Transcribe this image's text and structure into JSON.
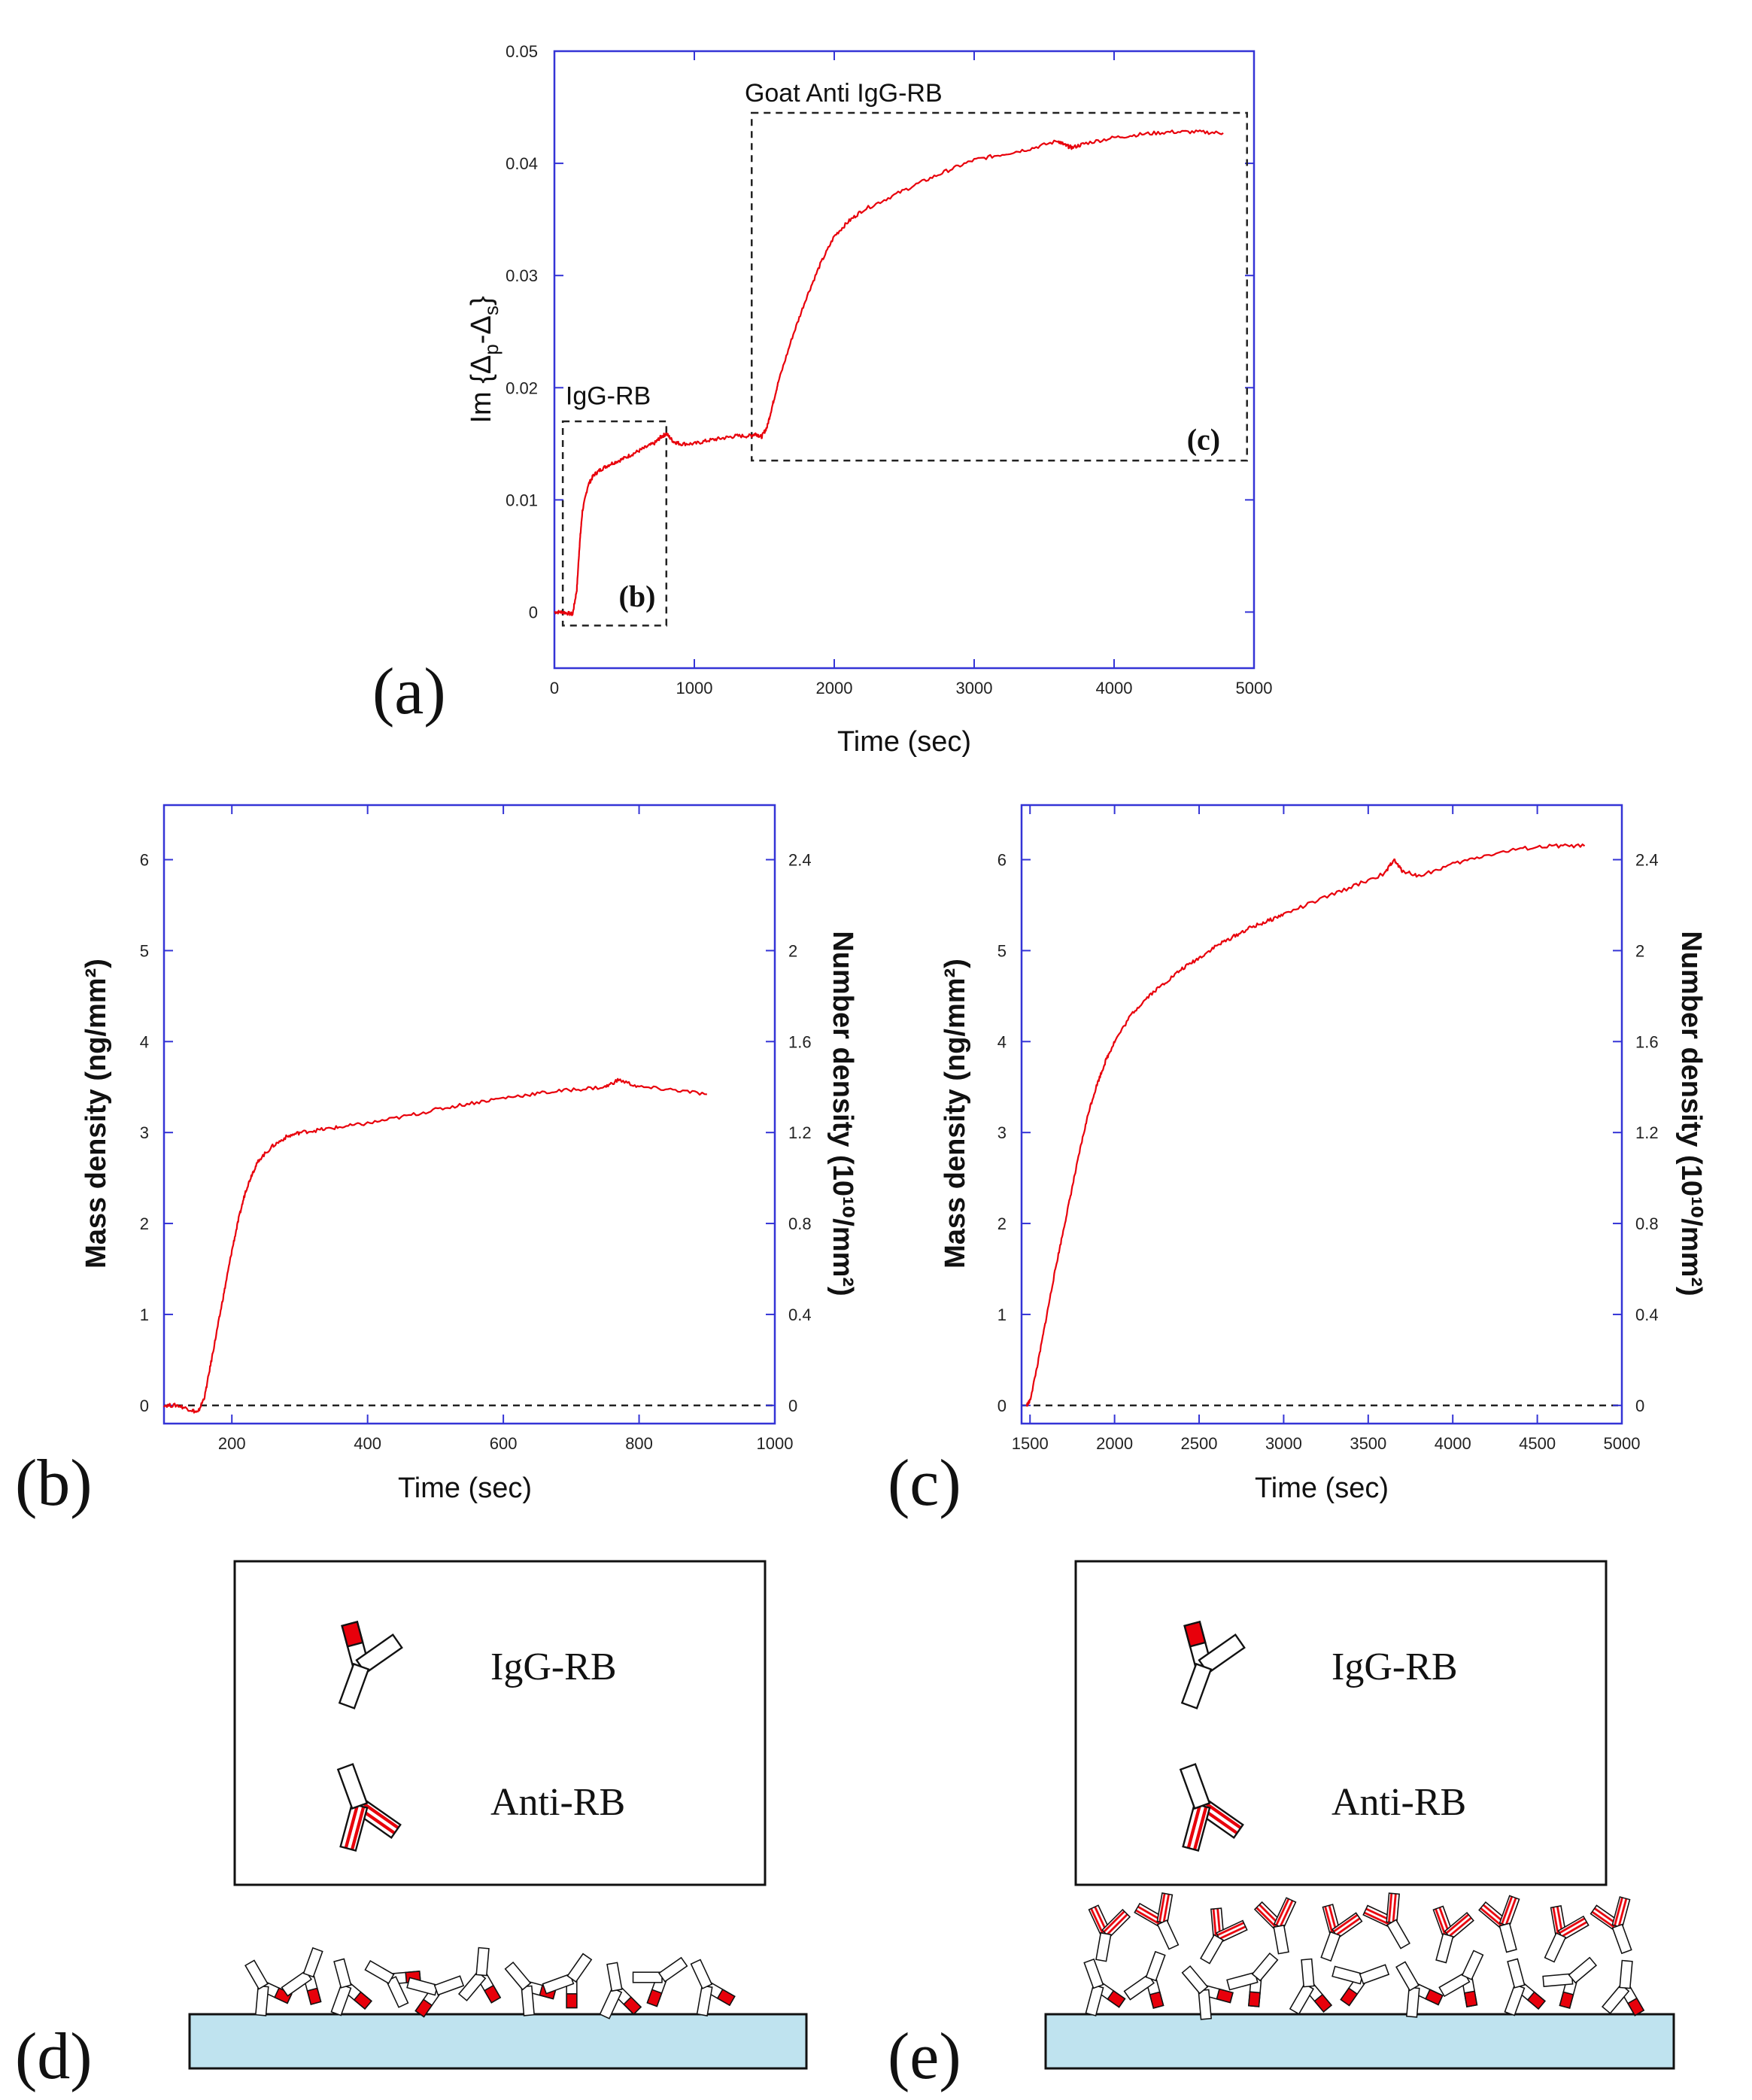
{
  "colors": {
    "axis": "#3434d6",
    "curve": "#e8000b",
    "substrate": "#bfe3ef",
    "fab": "#e8000b"
  },
  "panel_labels": {
    "a": "(a)",
    "b": "(b)",
    "c": "(c)",
    "d": "(d)",
    "e": "(e)"
  },
  "chart_data": [
    {
      "id": "a",
      "type": "line",
      "xlabel": "Time (sec)",
      "ylabel": "Im {Δp-Δs}",
      "ylabel_parts": {
        "prefix": "Im {Δ",
        "sub1": "p",
        "mid": "-Δ",
        "sub2": "s",
        "suffix": "}"
      },
      "xlim": [
        0,
        5000
      ],
      "ylim": [
        -0.005,
        0.05
      ],
      "xticks": [
        0,
        1000,
        2000,
        3000,
        4000,
        5000
      ],
      "xtick_labels": [
        "0",
        "1000",
        "2000",
        "3000",
        "4000",
        "5000"
      ],
      "yticks": [
        0,
        0.01,
        0.02,
        0.03,
        0.04,
        0.05
      ],
      "ytick_labels": [
        "0",
        "0.01",
        "0.02",
        "0.03",
        "0.04",
        "0.05"
      ],
      "annotations": [
        {
          "text": "IgG-RB",
          "x": 80,
          "y": 0.0185
        },
        {
          "text": "Goat Anti IgG-RB",
          "x": 1360,
          "y": 0.0455
        },
        {
          "text": "(b)",
          "x": 460,
          "y": 0.0005,
          "serif": true
        },
        {
          "text": "(c)",
          "x": 4520,
          "y": 0.0145,
          "serif": true
        }
      ],
      "boxes": [
        {
          "x0": 60,
          "x1": 800,
          "y0": -0.0012,
          "y1": 0.017
        },
        {
          "x0": 1410,
          "x1": 4950,
          "y0": 0.0135,
          "y1": 0.0445
        }
      ],
      "series": [
        {
          "x": [
            0,
            60,
            130,
            160,
            180,
            200,
            240,
            280,
            330,
            400,
            480,
            560,
            640,
            720,
            760,
            800,
            850,
            900,
            1000,
            1100,
            1200,
            1300,
            1400,
            1440,
            1480,
            1520,
            1560,
            1600,
            1700,
            1800,
            1900,
            2000,
            2100,
            2200,
            2400,
            2600,
            2800,
            3000,
            3200,
            3400,
            3600,
            3650,
            3700,
            3800,
            4000,
            4200,
            4400,
            4600,
            4780
          ],
          "y": [
            0,
            0,
            -0.0002,
            0.002,
            0.006,
            0.009,
            0.0113,
            0.0122,
            0.0127,
            0.0132,
            0.0136,
            0.0141,
            0.0146,
            0.0151,
            0.0156,
            0.0159,
            0.0152,
            0.015,
            0.015,
            0.0153,
            0.0155,
            0.0157,
            0.0157,
            0.0159,
            0.0156,
            0.0165,
            0.0185,
            0.0205,
            0.0245,
            0.028,
            0.031,
            0.0335,
            0.0348,
            0.0358,
            0.037,
            0.0382,
            0.0393,
            0.0403,
            0.0408,
            0.0413,
            0.042,
            0.0416,
            0.0414,
            0.0418,
            0.0423,
            0.0426,
            0.0428,
            0.0428,
            0.0427
          ]
        }
      ]
    },
    {
      "id": "b",
      "type": "line",
      "xlabel": "Time (sec)",
      "ylabel": "Mass density (ng/mm²)",
      "y2label": "Number density (10¹⁰/mm²)",
      "xlim": [
        100,
        1000
      ],
      "ylim": [
        -0.2,
        6.6
      ],
      "xticks": [
        200,
        400,
        600,
        800,
        1000
      ],
      "xtick_labels": [
        "200",
        "400",
        "600",
        "800",
        "1000"
      ],
      "yticks": [
        0,
        1,
        2,
        3,
        4,
        5,
        6
      ],
      "ytick_labels": [
        "0",
        "1",
        "2",
        "3",
        "4",
        "5",
        "6"
      ],
      "y2ticks": [
        0,
        0.4,
        0.8,
        1.2,
        1.6,
        2,
        2.4
      ],
      "y2tick_labels": [
        "0",
        "0.4",
        "0.8",
        "1.2",
        "1.6",
        "2",
        "2.4"
      ],
      "y2_per_y": 0.4,
      "zero_line": true,
      "series": [
        {
          "x": [
            100,
            120,
            140,
            150,
            160,
            170,
            180,
            190,
            200,
            210,
            220,
            230,
            240,
            260,
            280,
            300,
            330,
            360,
            400,
            450,
            500,
            550,
            600,
            650,
            700,
            750,
            770,
            800,
            850,
            900
          ],
          "y": [
            0,
            0,
            -0.05,
            -0.08,
            0.1,
            0.5,
            0.9,
            1.3,
            1.7,
            2.05,
            2.35,
            2.55,
            2.7,
            2.85,
            2.95,
            3.0,
            3.03,
            3.06,
            3.1,
            3.17,
            3.25,
            3.32,
            3.38,
            3.43,
            3.47,
            3.5,
            3.58,
            3.5,
            3.47,
            3.42
          ]
        }
      ]
    },
    {
      "id": "c",
      "type": "line",
      "xlabel": "Time (sec)",
      "ylabel": "Mass density (ng/mm²)",
      "y2label": "Number density (10¹⁰/mm²)",
      "xlim": [
        1450,
        5000
      ],
      "ylim": [
        -0.2,
        6.6
      ],
      "xticks": [
        1500,
        2000,
        2500,
        3000,
        3500,
        4000,
        4500,
        5000
      ],
      "xtick_labels": [
        "1500",
        "2000",
        "2500",
        "3000",
        "3500",
        "4000",
        "4500",
        "5000"
      ],
      "yticks": [
        0,
        1,
        2,
        3,
        4,
        5,
        6
      ],
      "ytick_labels": [
        "0",
        "1",
        "2",
        "3",
        "4",
        "5",
        "6"
      ],
      "y2ticks": [
        0,
        0.4,
        0.8,
        1.2,
        1.6,
        2,
        2.4
      ],
      "y2tick_labels": [
        "0",
        "0.4",
        "0.8",
        "1.2",
        "1.6",
        "2",
        "2.4"
      ],
      "y2_per_y": 0.4,
      "zero_line": true,
      "series": [
        {
          "x": [
            1480,
            1500,
            1550,
            1600,
            1650,
            1700,
            1750,
            1800,
            1850,
            1900,
            1950,
            2000,
            2100,
            2200,
            2300,
            2400,
            2500,
            2600,
            2700,
            2800,
            2900,
            3000,
            3200,
            3400,
            3600,
            3650,
            3700,
            3800,
            4000,
            4200,
            4400,
            4600,
            4780
          ],
          "y": [
            0,
            0.05,
            0.5,
            1.0,
            1.5,
            1.95,
            2.4,
            2.85,
            3.25,
            3.55,
            3.8,
            4.0,
            4.3,
            4.5,
            4.65,
            4.8,
            4.92,
            5.05,
            5.15,
            5.25,
            5.32,
            5.4,
            5.55,
            5.7,
            5.85,
            6.0,
            5.88,
            5.82,
            5.95,
            6.05,
            6.12,
            6.15,
            6.15
          ]
        }
      ]
    }
  ],
  "legends": {
    "d": {
      "items": [
        {
          "label": "IgG-RB"
        },
        {
          "label": "Anti-RB"
        }
      ]
    },
    "e": {
      "items": [
        {
          "label": "IgG-RB"
        },
        {
          "label": "Anti-RB"
        }
      ]
    }
  }
}
